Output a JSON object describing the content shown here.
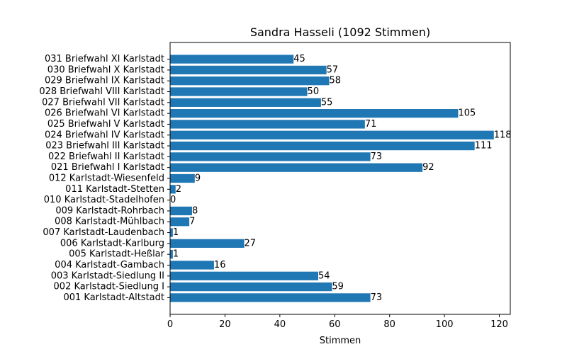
{
  "chart_data": {
    "type": "bar",
    "orientation": "horizontal",
    "title": "Sandra Hasseli (1092 Stimmen)",
    "xlabel": "Stimmen",
    "ylabel": "",
    "xlim": [
      0,
      124
    ],
    "xticks": [
      0,
      20,
      40,
      60,
      80,
      100,
      120
    ],
    "grid": false,
    "bar_color": "#1f77b4",
    "categories": [
      "001 Karlstadt-Altstadt",
      "002 Karlstadt-Siedlung I",
      "003 Karlstadt-Siedlung II",
      "004 Karlstadt-Gambach",
      "005 Karlstadt-Heßlar",
      "006 Karlstadt-Karlburg",
      "007 Karlstadt-Laudenbach",
      "008 Karlstadt-Mühlbach",
      "009 Karlstadt-Rohrbach",
      "010 Karlstadt-Stadelhofen",
      "011 Karlstadt-Stetten",
      "012 Karlstadt-Wiesenfeld",
      "021 Briefwahl I Karlstadt",
      "022 Briefwahl II Karlstadt",
      "023 Briefwahl III Karlstadt",
      "024 Briefwahl IV Karlstadt",
      "025 Briefwahl V Karlstadt",
      "026 Briefwahl VI Karlstadt",
      "027 Briefwahl VII Karlstadt",
      "028 Briefwahl VIII Karlstadt",
      "029 Briefwahl IX Karlstadt",
      "030 Briefwahl X Karlstadt",
      "031 Briefwahl XI Karlstadt"
    ],
    "values": [
      73,
      59,
      54,
      16,
      1,
      27,
      1,
      7,
      8,
      0,
      2,
      9,
      92,
      73,
      111,
      118,
      71,
      105,
      55,
      50,
      58,
      57,
      45
    ]
  }
}
